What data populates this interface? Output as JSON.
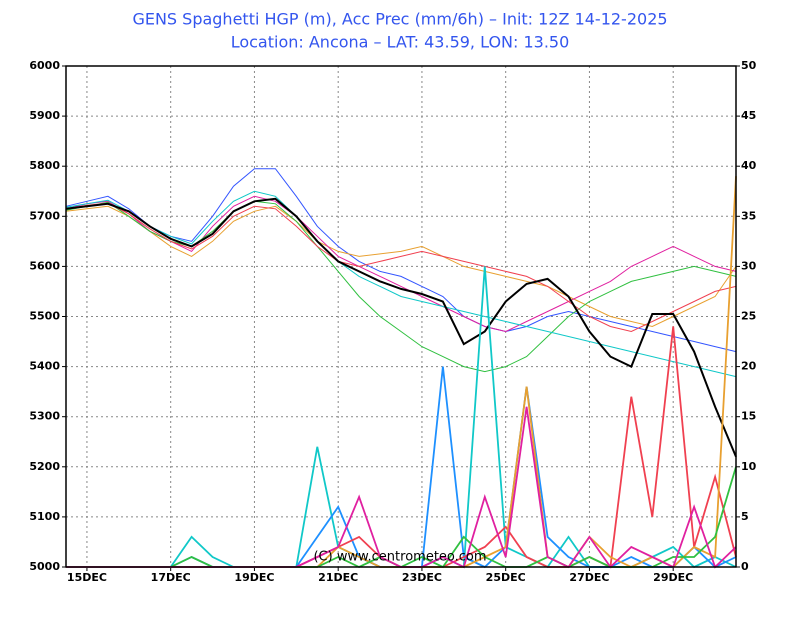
{
  "chart_data": {
    "type": "line",
    "title": "GENS Spaghetti HGP (m), Acc Prec (mm/6h)  –  Init: 12Z 14-12-2025",
    "subtitle": "Location: Ancona  –  LAT: 43.59, LON: 13.50",
    "annotation": "(C) www.centrometeo.com",
    "x": [
      0,
      12,
      24,
      36,
      48,
      60,
      72,
      84,
      96,
      108,
      120,
      132,
      144,
      156,
      168,
      180,
      192,
      204,
      216,
      228,
      240,
      252,
      264,
      276,
      288,
      300,
      312,
      324,
      336,
      348,
      360,
      372,
      384
    ],
    "xlim": [
      0,
      384
    ],
    "xticks": [
      {
        "value": 12,
        "label": "15DEC"
      },
      {
        "value": 60,
        "label": "17DEC"
      },
      {
        "value": 108,
        "label": "19DEC"
      },
      {
        "value": 156,
        "label": "21DEC"
      },
      {
        "value": 204,
        "label": "23DEC"
      },
      {
        "value": 252,
        "label": "25DEC"
      },
      {
        "value": 300,
        "label": "27DEC"
      },
      {
        "value": 348,
        "label": "29DEC"
      }
    ],
    "ylim": [
      5000,
      6000
    ],
    "yticks": [
      5000,
      5100,
      5200,
      5300,
      5400,
      5500,
      5600,
      5700,
      5800,
      5900,
      6000
    ],
    "y2lim": [
      0,
      50
    ],
    "y2ticks": [
      0,
      5,
      10,
      15,
      20,
      25,
      30,
      35,
      40,
      45,
      50
    ],
    "grid": true,
    "series": [
      {
        "color": "#3355ff",
        "values": [
          5720,
          5730,
          5740,
          5715,
          5680,
          5660,
          5650,
          5700,
          5760,
          5795,
          5795,
          5740,
          5680,
          5640,
          5610,
          5590,
          5580,
          5560,
          5540,
          5500,
          5480,
          5470,
          5480,
          5500,
          5510,
          5500,
          5490,
          5480,
          5470,
          5460,
          5450,
          5440,
          5430
        ]
      },
      {
        "color": "#e8a030",
        "values": [
          5710,
          5715,
          5720,
          5700,
          5670,
          5640,
          5620,
          5650,
          5690,
          5710,
          5720,
          5690,
          5650,
          5630,
          5620,
          5625,
          5630,
          5640,
          5620,
          5600,
          5590,
          5580,
          5570,
          5560,
          5540,
          5520,
          5500,
          5490,
          5480,
          5500,
          5520,
          5540,
          5600
        ]
      },
      {
        "color": "#e020a0",
        "values": [
          5715,
          5725,
          5730,
          5705,
          5670,
          5650,
          5630,
          5680,
          5720,
          5740,
          5730,
          5700,
          5660,
          5620,
          5600,
          5580,
          5560,
          5540,
          5520,
          5500,
          5480,
          5470,
          5490,
          5510,
          5530,
          5550,
          5570,
          5600,
          5620,
          5640,
          5620,
          5600,
          5590
        ]
      },
      {
        "color": "#30c040",
        "values": [
          5712,
          5720,
          5728,
          5700,
          5670,
          5650,
          5640,
          5670,
          5710,
          5730,
          5725,
          5690,
          5640,
          5590,
          5540,
          5500,
          5470,
          5440,
          5420,
          5400,
          5390,
          5400,
          5420,
          5460,
          5500,
          5530,
          5550,
          5570,
          5580,
          5590,
          5600,
          5590,
          5580
        ]
      },
      {
        "color": "#10c8c8",
        "values": [
          5718,
          5725,
          5732,
          5710,
          5680,
          5660,
          5645,
          5690,
          5730,
          5750,
          5740,
          5700,
          5650,
          5610,
          5580,
          5560,
          5540,
          5530,
          5520,
          5510,
          5500,
          5490,
          5480,
          5470,
          5460,
          5450,
          5440,
          5430,
          5420,
          5410,
          5400,
          5390,
          5380
        ]
      },
      {
        "color": "#f04050",
        "values": [
          5714,
          5722,
          5726,
          5705,
          5675,
          5650,
          5635,
          5660,
          5700,
          5720,
          5715,
          5680,
          5640,
          5610,
          5600,
          5610,
          5620,
          5630,
          5620,
          5610,
          5600,
          5590,
          5580,
          5560,
          5530,
          5500,
          5480,
          5470,
          5490,
          5510,
          5530,
          5550,
          5560
        ]
      },
      {
        "color": "#000000",
        "values": [
          5715,
          5720,
          5725,
          5710,
          5680,
          5655,
          5640,
          5665,
          5710,
          5730,
          5735,
          5700,
          5650,
          5610,
          5590,
          5570,
          5555,
          5545,
          5530,
          5445,
          5470,
          5530,
          5565,
          5575,
          5540,
          5470,
          5420,
          5400,
          5505,
          5505,
          5430,
          5320,
          5220
        ]
      },
      {
        "color": "#10c8c8",
        "axis": "y2",
        "values": [
          0,
          0,
          0,
          0,
          0,
          0,
          3,
          1,
          0,
          0,
          0,
          0,
          12,
          2,
          1,
          0,
          0,
          0,
          1,
          0,
          30,
          2,
          1,
          0,
          3,
          0,
          0,
          0,
          1,
          2,
          0,
          1,
          0
        ]
      },
      {
        "color": "#1e90ff",
        "axis": "y2",
        "values": [
          0,
          0,
          0,
          0,
          0,
          0,
          1,
          0,
          0,
          0,
          0,
          0,
          3,
          6,
          1,
          0,
          0,
          0,
          20,
          1,
          0,
          2,
          18,
          3,
          1,
          0,
          0,
          1,
          0,
          0,
          2,
          0,
          1
        ]
      },
      {
        "color": "#f04050",
        "axis": "y2",
        "values": [
          0,
          0,
          0,
          0,
          0,
          0,
          0,
          0,
          0,
          0,
          0,
          0,
          1,
          2,
          3,
          1,
          0,
          0,
          0,
          1,
          2,
          4,
          1,
          0,
          0,
          1,
          0,
          17,
          5,
          24,
          2,
          9,
          1
        ]
      },
      {
        "color": "#e8a030",
        "axis": "y2",
        "values": [
          0,
          0,
          0,
          0,
          0,
          0,
          0,
          0,
          0,
          0,
          0,
          0,
          0,
          2,
          1,
          0,
          0,
          0,
          0,
          0,
          1,
          2,
          18,
          1,
          0,
          3,
          1,
          0,
          1,
          0,
          2,
          1,
          39
        ]
      },
      {
        "color": "#30c040",
        "axis": "y2",
        "values": [
          0,
          0,
          0,
          0,
          0,
          0,
          1,
          0,
          0,
          0,
          0,
          0,
          0,
          1,
          0,
          1,
          0,
          1,
          0,
          3,
          1,
          0,
          0,
          1,
          0,
          1,
          0,
          0,
          0,
          1,
          1,
          3,
          10
        ]
      },
      {
        "color": "#e020a0",
        "axis": "y2",
        "values": [
          0,
          0,
          0,
          0,
          0,
          0,
          0,
          0,
          0,
          0,
          0,
          0,
          1,
          2,
          7,
          1,
          0,
          0,
          1,
          0,
          7,
          1,
          16,
          1,
          0,
          3,
          0,
          2,
          1,
          0,
          6,
          0,
          2
        ]
      }
    ]
  }
}
